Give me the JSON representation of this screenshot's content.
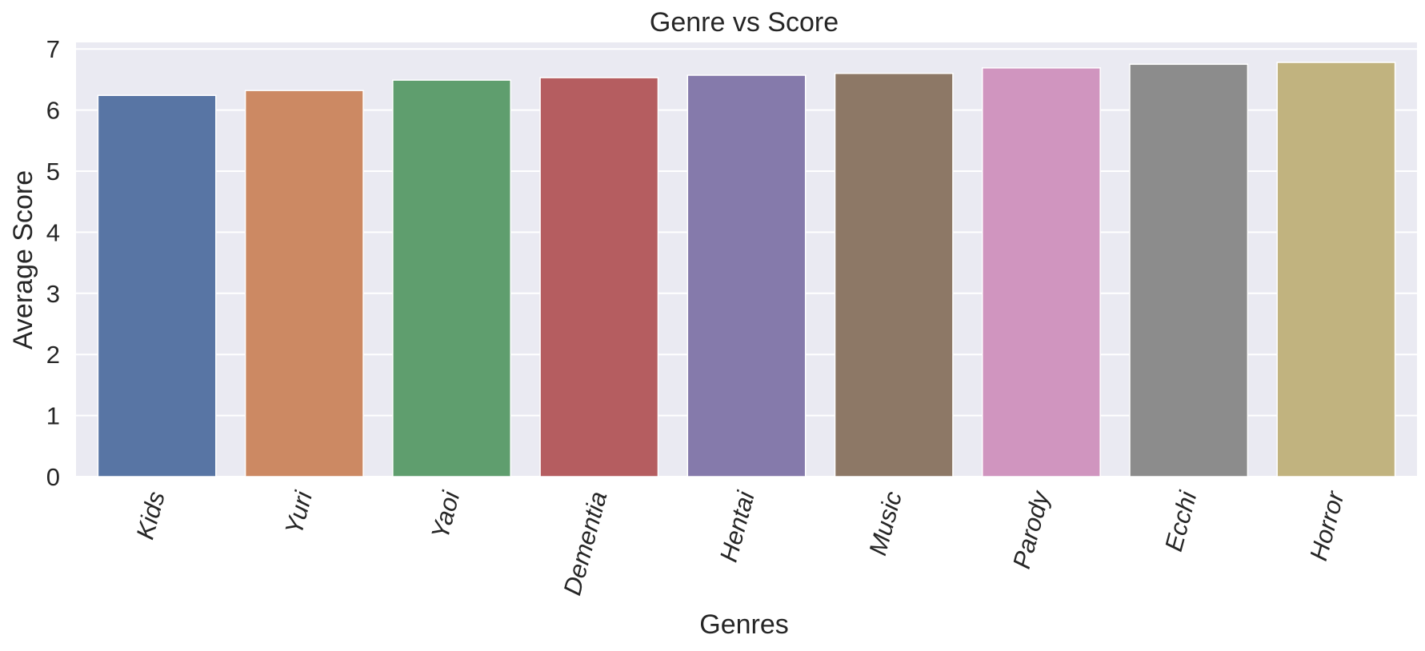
{
  "chart_data": {
    "type": "bar",
    "title": "Genre vs Score",
    "xlabel": "Genres",
    "ylabel": "Average Score",
    "categories": [
      "Kids",
      "Yuri",
      "Yaoi",
      "Dementia",
      "Hentai",
      "Music",
      "Parody",
      "Ecchi",
      "Horror"
    ],
    "values": [
      6.24,
      6.32,
      6.49,
      6.53,
      6.57,
      6.6,
      6.69,
      6.75,
      6.78
    ],
    "colors": [
      "#5875a4",
      "#cc8963",
      "#5f9e6e",
      "#b55d60",
      "#857aab",
      "#8d7866",
      "#d095bf",
      "#8c8c8c",
      "#c1b37f"
    ],
    "ylim": [
      0,
      7.1
    ],
    "yticks": [
      "0",
      "1",
      "2",
      "3",
      "4",
      "5",
      "6",
      "7"
    ],
    "grid": true,
    "background": "#eaeaf2",
    "legend": "none"
  }
}
